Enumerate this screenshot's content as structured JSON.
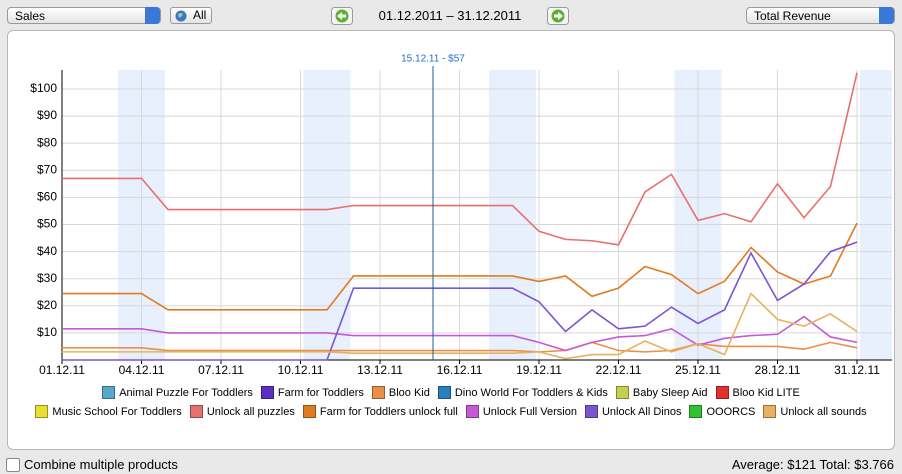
{
  "controls": {
    "product_select": "Sales",
    "scope_button": "All",
    "date_range": "01.12.2011 – 31.12.2011",
    "metric_select": "Total Revenue"
  },
  "chart_data": {
    "type": "line",
    "categories": [
      "01.12.11",
      null,
      null,
      "04.12.11",
      null,
      null,
      "07.12.11",
      null,
      null,
      "10.12.11",
      null,
      null,
      "13.12.11",
      null,
      null,
      "16.12.11",
      null,
      null,
      "19.12.11",
      null,
      null,
      "22.12.11",
      null,
      null,
      "25.12.11",
      null,
      null,
      "28.12.11",
      null,
      null,
      "31.12.11"
    ],
    "ylim": [
      0,
      107
    ],
    "yticks": [
      {
        "value": 10,
        "label": "$10"
      },
      {
        "value": 20,
        "label": "$20"
      },
      {
        "value": 30,
        "label": "$30"
      },
      {
        "value": 40,
        "label": "$40"
      },
      {
        "value": 50,
        "label": "$50"
      },
      {
        "value": 60,
        "label": "$60"
      },
      {
        "value": 70,
        "label": "$70"
      },
      {
        "value": 80,
        "label": "$80"
      },
      {
        "value": 90,
        "label": "$90"
      },
      {
        "value": 100,
        "label": "$100"
      }
    ],
    "grid": true,
    "annotation": {
      "text": "15.12.11 - $57",
      "index": 14
    },
    "series": [
      {
        "name": "Animal Puzzle For Toddlers",
        "color": "#5aa7cc"
      },
      {
        "name": "Farm for Toddlers",
        "color": "#5b2fc0"
      },
      {
        "name": "Bloo Kid",
        "color": "#e8904a",
        "values": [
          4.5,
          4.5,
          4.5,
          4.5,
          3.5,
          3.5,
          3.5,
          3.5,
          3.5,
          3.5,
          3.5,
          3.5,
          3.5,
          3.5,
          3.5,
          3.5,
          3.5,
          3.5,
          3,
          3.5,
          6.5,
          3.5,
          3,
          3.5,
          6,
          5,
          5,
          5,
          4,
          6.5,
          4.5
        ]
      },
      {
        "name": "Dino World For Toddlers & Kids",
        "color": "#2a7fbf"
      },
      {
        "name": "Baby Sleep Aid",
        "color": "#c5d050"
      },
      {
        "name": "Bloo Kid LITE",
        "color": "#e03030"
      },
      {
        "name": "Music School For Toddlers",
        "color": "#e8e030"
      },
      {
        "name": "Unlock all puzzles",
        "color": "#e8706a",
        "values": [
          67,
          67,
          67,
          67,
          55.5,
          55.5,
          55.5,
          55.5,
          55.5,
          55.5,
          55.5,
          57,
          57,
          57,
          57,
          57,
          57,
          57,
          47.5,
          44.5,
          44,
          42.5,
          62,
          68.5,
          51.5,
          54,
          51,
          65,
          52.5,
          64,
          106
        ]
      },
      {
        "name": "Farm for Toddlers unlock full",
        "color": "#e07c20",
        "values": [
          24.5,
          24.5,
          24.5,
          24.5,
          18.5,
          18.5,
          18.5,
          18.5,
          18.5,
          18.5,
          18.5,
          31,
          31,
          31,
          31,
          31,
          31,
          31,
          29,
          31,
          23.5,
          26.5,
          34.5,
          31.5,
          24.5,
          29,
          41.5,
          32.5,
          28,
          31,
          50.5
        ]
      },
      {
        "name": "Unlock Full Version",
        "color": "#c45ad6",
        "values": [
          11.5,
          11.5,
          11.5,
          11.5,
          10,
          10,
          10,
          10,
          10,
          10,
          10,
          9,
          9,
          9,
          9,
          9,
          9,
          9,
          6.5,
          3.5,
          6.5,
          8.5,
          9,
          11.5,
          5.5,
          8,
          9,
          9.5,
          16,
          8.5,
          6.5
        ]
      },
      {
        "name": "Unlock All Dinos",
        "color": "#7b55d0",
        "values": [
          0,
          0,
          0,
          0,
          0,
          0,
          0,
          0,
          0,
          0,
          0,
          26.5,
          26.5,
          26.5,
          26.5,
          26.5,
          26.5,
          26.5,
          21.5,
          10.5,
          18.5,
          11.5,
          12.5,
          19.5,
          13.5,
          18.5,
          39.5,
          22,
          28,
          40,
          43.5
        ]
      },
      {
        "name": "OOORCS",
        "color": "#30c030"
      },
      {
        "name": "Unlock all sounds",
        "color": "#e8b060",
        "values": [
          3,
          3,
          3,
          3,
          3,
          3,
          3,
          3,
          3,
          3,
          3,
          2.5,
          2.5,
          2.5,
          2.5,
          2.5,
          2.5,
          2.5,
          3,
          0.5,
          2,
          2,
          7,
          3,
          6,
          2,
          24.5,
          15,
          12.5,
          17,
          10.5
        ]
      }
    ]
  },
  "footer": {
    "checkbox_label": "Combine multiple products",
    "summary": "Average: $121 Total: $3.766"
  }
}
